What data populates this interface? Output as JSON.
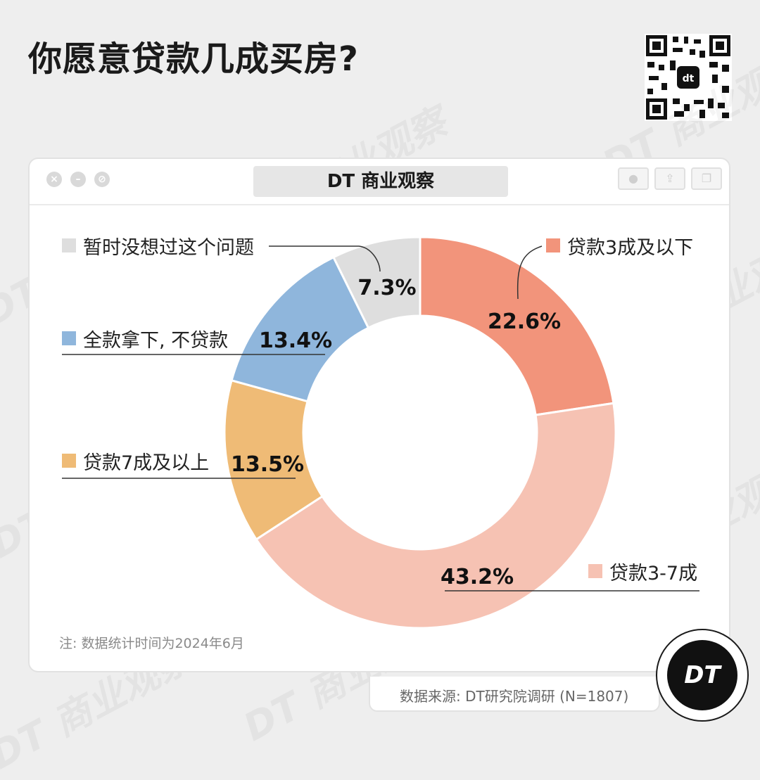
{
  "title": "你愿意贷款几成买房?",
  "window": {
    "tab_label": "DT 商业观察"
  },
  "watermark": "DT 商业观察",
  "colors": {
    "s1": "#f2947b",
    "s2": "#f6c2b3",
    "s3": "#efbb76",
    "s4": "#8fb6dc",
    "s5": "#dedede"
  },
  "chart_data": {
    "type": "pie",
    "title": "你愿意贷款几成买房?",
    "categories": [
      "贷款3成及以下",
      "贷款3-7成",
      "贷款7成及以上",
      "全款拿下, 不贷款",
      "暂时没想过这个问题"
    ],
    "values": [
      22.6,
      43.2,
      13.5,
      13.4,
      7.3
    ],
    "value_labels": [
      "22.6%",
      "43.2%",
      "13.5%",
      "13.4%",
      "7.3%"
    ],
    "donut": true
  },
  "note": "注: 数据统计时间为2024年6月",
  "source": "数据来源: DT研究院调研 (N=1807)",
  "badge": "DT"
}
